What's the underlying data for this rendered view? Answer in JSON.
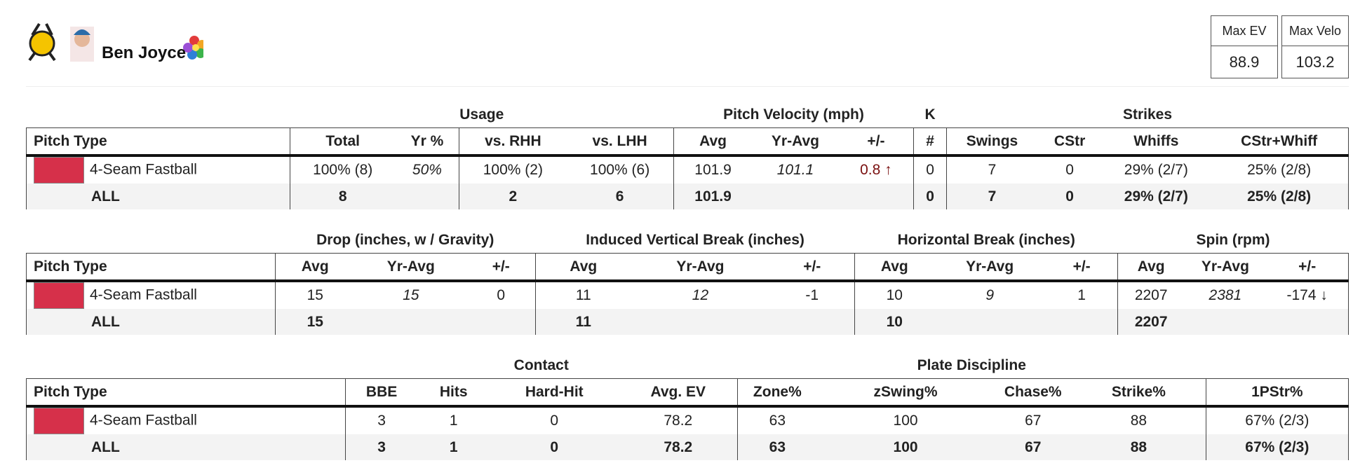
{
  "header": {
    "name": "Ben Joyce",
    "stats": [
      {
        "label": "Max EV",
        "value": "88.9"
      },
      {
        "label": "Max Velo",
        "value": "103.2"
      }
    ]
  },
  "pitch_color": "#d6304a",
  "tables": [
    {
      "first_column": "Pitch Type",
      "groups": [
        {
          "label": "Usage",
          "columns": [
            "Total",
            "Yr %",
            "vs. RHH",
            "vs. LHH"
          ]
        },
        {
          "label": "Pitch Velocity (mph)",
          "columns": [
            "Avg",
            "Yr-Avg",
            "+/-"
          ]
        },
        {
          "label": "K",
          "columns": [
            "#"
          ]
        },
        {
          "label": "Strikes",
          "columns": [
            "Swings",
            "CStr",
            "Whiffs",
            "CStr+Whiff"
          ]
        }
      ],
      "rows": [
        [
          "4-Seam Fastball",
          "100% (8)",
          "50%",
          "100% (2)",
          "100% (6)",
          "101.9",
          "101.1",
          "0.8 ↑",
          "0",
          "7",
          "0",
          "29% (2/7)",
          "25% (2/8)"
        ],
        [
          "ALL",
          "8",
          null,
          "2",
          "6",
          "101.9",
          null,
          null,
          "0",
          "7",
          "0",
          "29% (2/7)",
          "25% (2/8)"
        ]
      ]
    },
    {
      "first_column": "Pitch Type",
      "groups": [
        {
          "label": "Drop (inches, w / Gravity)",
          "columns": [
            "Avg",
            "Yr-Avg",
            "+/-"
          ]
        },
        {
          "label": "Induced Vertical Break (inches)",
          "columns": [
            "Avg",
            "Yr-Avg",
            "+/-"
          ]
        },
        {
          "label": "Horizontal Break (inches)",
          "columns": [
            "Avg",
            "Yr-Avg",
            "+/-"
          ]
        },
        {
          "label": "Spin (rpm)",
          "columns": [
            "Avg",
            "Yr-Avg",
            "+/-"
          ]
        }
      ],
      "rows": [
        [
          "4-Seam Fastball",
          "15",
          "15",
          "0",
          "11",
          "12",
          "-1",
          "10",
          "9",
          "1",
          "2207",
          "2381",
          "-174 ↓"
        ],
        [
          "ALL",
          "15",
          null,
          null,
          "11",
          null,
          null,
          "10",
          null,
          null,
          "2207",
          null,
          null
        ]
      ]
    },
    {
      "first_column": "Pitch Type",
      "groups": [
        {
          "label": "Contact",
          "columns": [
            "BBE",
            "Hits",
            "Hard-Hit",
            "Avg. EV"
          ]
        },
        {
          "label": "Plate Discipline",
          "columns": [
            "Zone%",
            "zSwing%",
            "Chase%",
            "Strike%"
          ]
        },
        {
          "columns": [
            "1PStr%"
          ]
        }
      ],
      "rows": [
        [
          "4-Seam Fastball",
          "3",
          "1",
          "0",
          "78.2",
          "63",
          "100",
          "67",
          "88",
          "67% (2/3)"
        ],
        [
          "ALL",
          "3",
          "1",
          "0",
          "78.2",
          "63",
          "100",
          "67",
          "88",
          "67% (2/3)"
        ]
      ]
    }
  ]
}
